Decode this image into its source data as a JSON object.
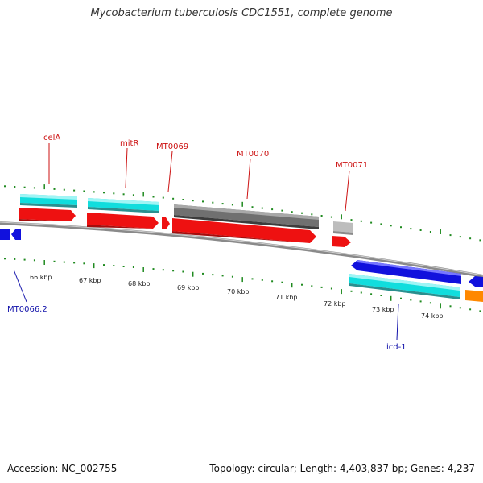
{
  "title": "Mycobacterium tuberculosis CDC1551, complete genome",
  "footer": {
    "accession": "Accession: NC_002755",
    "summary": "Topology: circular; Length: 4,403,837 bp; Genes: 4,237"
  },
  "colors": {
    "tick": "#1f8a1f",
    "backbone": "#7a7a7a",
    "gene_red": "#ee1111",
    "gene_cyan": "#11dddd",
    "gene_blue": "#1111dd",
    "gene_gray": "#707070",
    "gene_lightgray": "#bdbdbd",
    "gene_orange": "#ff8800",
    "label_top": "#cc1111",
    "label_bottom": "#1111aa"
  },
  "scale_labels": [
    "66 kbp",
    "67 kbp",
    "68 kbp",
    "69 kbp",
    "70 kbp",
    "71 kbp",
    "72 kbp",
    "73 kbp",
    "74 kbp"
  ],
  "gene_labels_top": [
    "celA",
    "mitR",
    "MT0069",
    "MT0070",
    "MT0071"
  ],
  "gene_labels_bottom": [
    "MT0066.2",
    "icd-1"
  ]
}
